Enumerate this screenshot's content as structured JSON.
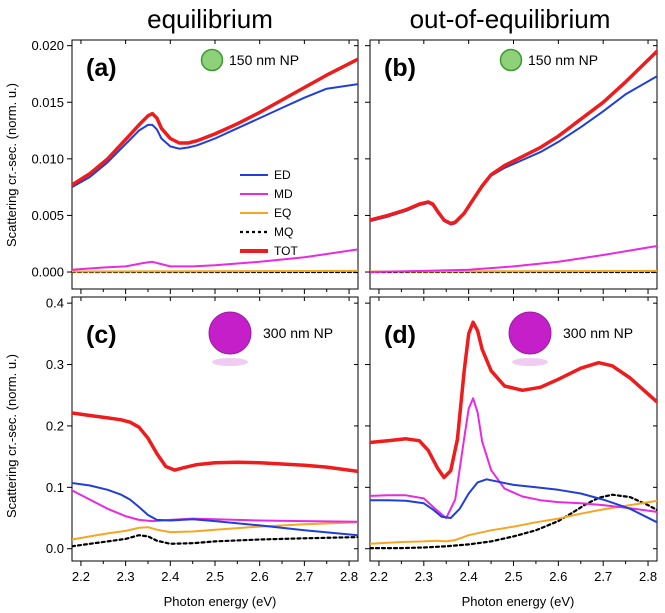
{
  "column_titles": [
    "equilibrium",
    "out-of-equilibrium"
  ],
  "colors": {
    "ED": "#1f3fd8",
    "MD": "#e72be0",
    "EQ": "#f5a623",
    "MQ": "#000000",
    "TOT": "#ee1c1c",
    "np_small": "#8fd17a",
    "np_large": "#c51fc9"
  },
  "legend": [
    "ED",
    "MD",
    "EQ",
    "MQ",
    "TOT"
  ],
  "chart_data": [
    {
      "type": "line",
      "panel": "(a)",
      "np_label": "150 nm NP",
      "title": "equilibrium",
      "xlabel": "",
      "ylabel": "Scattering cr.-sec. (norm. u.)",
      "xlim": [
        2.18,
        2.82
      ],
      "ylim": [
        -0.0015,
        0.0205
      ],
      "yticks": [
        "0.000",
        "0.005",
        "0.010",
        "0.015",
        "0.020"
      ],
      "ytick_values": [
        0,
        0.005,
        0.01,
        0.015,
        0.02
      ],
      "series": [
        {
          "name": "TOT",
          "x": [
            2.18,
            2.22,
            2.26,
            2.3,
            2.33,
            2.35,
            2.36,
            2.37,
            2.38,
            2.4,
            2.42,
            2.44,
            2.46,
            2.5,
            2.55,
            2.6,
            2.65,
            2.7,
            2.75,
            2.82
          ],
          "y": [
            0.0077,
            0.0087,
            0.01,
            0.0117,
            0.013,
            0.0138,
            0.014,
            0.0136,
            0.0127,
            0.0118,
            0.0114,
            0.0114,
            0.0116,
            0.0122,
            0.0131,
            0.0141,
            0.0152,
            0.0163,
            0.0174,
            0.0188
          ]
        },
        {
          "name": "ED",
          "x": [
            2.18,
            2.22,
            2.26,
            2.3,
            2.33,
            2.35,
            2.36,
            2.37,
            2.38,
            2.4,
            2.42,
            2.44,
            2.46,
            2.5,
            2.55,
            2.6,
            2.65,
            2.7,
            2.75,
            2.82
          ],
          "y": [
            0.0075,
            0.0084,
            0.0097,
            0.0113,
            0.0125,
            0.013,
            0.013,
            0.0126,
            0.0118,
            0.0111,
            0.0109,
            0.011,
            0.0112,
            0.0118,
            0.0127,
            0.0136,
            0.0145,
            0.0154,
            0.0162,
            0.0166
          ]
        },
        {
          "name": "MD",
          "x": [
            2.18,
            2.25,
            2.3,
            2.34,
            2.36,
            2.38,
            2.4,
            2.45,
            2.5,
            2.6,
            2.7,
            2.82
          ],
          "y": [
            0.0002,
            0.0004,
            0.0005,
            0.0008,
            0.0009,
            0.0007,
            0.0005,
            0.0005,
            0.0006,
            0.0009,
            0.0013,
            0.002
          ]
        },
        {
          "name": "EQ",
          "x": [
            2.18,
            2.82
          ],
          "y": [
            5e-05,
            0.0001
          ]
        },
        {
          "name": "MQ",
          "x": [
            2.18,
            2.82
          ],
          "y": [
            0.0,
            0.0
          ]
        }
      ]
    },
    {
      "type": "line",
      "panel": "(b)",
      "np_label": "150 nm NP",
      "title": "out-of-equilibrium",
      "xlabel": "",
      "ylabel": "",
      "xlim": [
        2.18,
        2.82
      ],
      "ylim": [
        -0.0015,
        0.0205
      ],
      "yticks": [],
      "ytick_values": [
        0,
        0.005,
        0.01,
        0.015,
        0.02
      ],
      "series": [
        {
          "name": "TOT",
          "x": [
            2.18,
            2.22,
            2.26,
            2.29,
            2.31,
            2.32,
            2.33,
            2.345,
            2.36,
            2.37,
            2.39,
            2.41,
            2.43,
            2.45,
            2.48,
            2.52,
            2.56,
            2.6,
            2.65,
            2.7,
            2.75,
            2.82
          ],
          "y": [
            0.0046,
            0.005,
            0.0055,
            0.006,
            0.0062,
            0.006,
            0.0054,
            0.0046,
            0.0043,
            0.0044,
            0.0052,
            0.0064,
            0.0076,
            0.0086,
            0.0094,
            0.0102,
            0.011,
            0.012,
            0.0135,
            0.015,
            0.0168,
            0.0195
          ]
        },
        {
          "name": "ED",
          "x": [
            2.18,
            2.22,
            2.26,
            2.29,
            2.31,
            2.32,
            2.33,
            2.345,
            2.36,
            2.37,
            2.39,
            2.41,
            2.43,
            2.45,
            2.48,
            2.52,
            2.56,
            2.6,
            2.65,
            2.7,
            2.75,
            2.82
          ],
          "y": [
            0.0045,
            0.0049,
            0.0054,
            0.0059,
            0.0061,
            0.0059,
            0.0053,
            0.0045,
            0.0042,
            0.0043,
            0.0051,
            0.0063,
            0.0075,
            0.0085,
            0.0092,
            0.0099,
            0.0106,
            0.0115,
            0.0128,
            0.0142,
            0.0157,
            0.0173
          ]
        },
        {
          "name": "MD",
          "x": [
            2.18,
            2.3,
            2.4,
            2.5,
            2.6,
            2.7,
            2.82
          ],
          "y": [
            0.0,
            0.0001,
            0.0002,
            0.0005,
            0.0009,
            0.0015,
            0.0023
          ]
        },
        {
          "name": "EQ",
          "x": [
            2.18,
            2.82
          ],
          "y": [
            5e-05,
            0.0001
          ]
        },
        {
          "name": "MQ",
          "x": [
            2.18,
            2.82
          ],
          "y": [
            0.0,
            0.0
          ]
        }
      ]
    },
    {
      "type": "line",
      "panel": "(c)",
      "np_label": "300 nm NP",
      "title": "",
      "xlabel": "Photon energy (eV)",
      "ylabel": "Scattering cr.-sec. (norm. u.)",
      "xlim": [
        2.18,
        2.82
      ],
      "ylim": [
        -0.02,
        0.41
      ],
      "yticks": [
        "0.0",
        "0.1",
        "0.2",
        "0.3",
        "0.4"
      ],
      "ytick_values": [
        0,
        0.1,
        0.2,
        0.3,
        0.4
      ],
      "series": [
        {
          "name": "TOT",
          "x": [
            2.18,
            2.22,
            2.26,
            2.29,
            2.31,
            2.33,
            2.35,
            2.37,
            2.39,
            2.41,
            2.43,
            2.46,
            2.5,
            2.55,
            2.6,
            2.65,
            2.7,
            2.75,
            2.82
          ],
          "y": [
            0.221,
            0.217,
            0.213,
            0.21,
            0.206,
            0.198,
            0.18,
            0.155,
            0.134,
            0.128,
            0.132,
            0.137,
            0.14,
            0.141,
            0.14,
            0.138,
            0.136,
            0.133,
            0.126
          ]
        },
        {
          "name": "ED",
          "x": [
            2.18,
            2.22,
            2.26,
            2.29,
            2.31,
            2.33,
            2.35,
            2.37,
            2.4,
            2.45,
            2.5,
            2.6,
            2.7,
            2.82
          ],
          "y": [
            0.107,
            0.103,
            0.096,
            0.088,
            0.08,
            0.068,
            0.055,
            0.047,
            0.046,
            0.048,
            0.045,
            0.038,
            0.03,
            0.022
          ]
        },
        {
          "name": "MD",
          "x": [
            2.18,
            2.22,
            2.26,
            2.3,
            2.33,
            2.36,
            2.4,
            2.45,
            2.5,
            2.6,
            2.7,
            2.82
          ],
          "y": [
            0.095,
            0.08,
            0.065,
            0.053,
            0.047,
            0.045,
            0.047,
            0.049,
            0.048,
            0.046,
            0.045,
            0.044
          ]
        },
        {
          "name": "EQ",
          "x": [
            2.18,
            2.22,
            2.26,
            2.3,
            2.33,
            2.35,
            2.37,
            2.4,
            2.45,
            2.5,
            2.6,
            2.7,
            2.82
          ],
          "y": [
            0.015,
            0.02,
            0.025,
            0.029,
            0.034,
            0.035,
            0.031,
            0.027,
            0.028,
            0.031,
            0.036,
            0.04,
            0.043
          ]
        },
        {
          "name": "MQ",
          "x": [
            2.18,
            2.22,
            2.26,
            2.3,
            2.33,
            2.35,
            2.37,
            2.4,
            2.45,
            2.5,
            2.6,
            2.7,
            2.82
          ],
          "y": [
            0.004,
            0.008,
            0.012,
            0.016,
            0.022,
            0.02,
            0.013,
            0.008,
            0.009,
            0.012,
            0.015,
            0.017,
            0.019
          ]
        }
      ]
    },
    {
      "type": "line",
      "panel": "(d)",
      "np_label": "300 nm NP",
      "title": "",
      "xlabel": "Photon energy (eV)",
      "ylabel": "",
      "xlim": [
        2.18,
        2.82
      ],
      "ylim": [
        -0.02,
        0.41
      ],
      "yticks": [],
      "ytick_values": [
        0,
        0.1,
        0.2,
        0.3,
        0.4
      ],
      "series": [
        {
          "name": "TOT",
          "x": [
            2.18,
            2.22,
            2.26,
            2.29,
            2.31,
            2.33,
            2.345,
            2.36,
            2.375,
            2.39,
            2.4,
            2.41,
            2.42,
            2.43,
            2.45,
            2.48,
            2.52,
            2.56,
            2.6,
            2.65,
            2.69,
            2.72,
            2.76,
            2.82
          ],
          "y": [
            0.173,
            0.176,
            0.179,
            0.176,
            0.16,
            0.132,
            0.116,
            0.127,
            0.178,
            0.29,
            0.35,
            0.369,
            0.355,
            0.325,
            0.29,
            0.265,
            0.258,
            0.263,
            0.276,
            0.294,
            0.303,
            0.298,
            0.278,
            0.239
          ]
        },
        {
          "name": "ED",
          "x": [
            2.18,
            2.22,
            2.26,
            2.3,
            2.32,
            2.34,
            2.36,
            2.38,
            2.4,
            2.42,
            2.44,
            2.46,
            2.5,
            2.55,
            2.6,
            2.65,
            2.7,
            2.76,
            2.82
          ],
          "y": [
            0.079,
            0.079,
            0.078,
            0.074,
            0.064,
            0.052,
            0.05,
            0.065,
            0.09,
            0.108,
            0.113,
            0.11,
            0.104,
            0.1,
            0.096,
            0.09,
            0.08,
            0.065,
            0.043
          ]
        },
        {
          "name": "MD",
          "x": [
            2.18,
            2.22,
            2.26,
            2.3,
            2.33,
            2.35,
            2.37,
            2.39,
            2.4,
            2.41,
            2.42,
            2.43,
            2.45,
            2.48,
            2.52,
            2.56,
            2.6,
            2.65,
            2.7,
            2.76,
            2.82
          ],
          "y": [
            0.086,
            0.087,
            0.087,
            0.082,
            0.062,
            0.05,
            0.08,
            0.18,
            0.228,
            0.245,
            0.222,
            0.175,
            0.128,
            0.098,
            0.085,
            0.079,
            0.076,
            0.074,
            0.071,
            0.066,
            0.06
          ]
        },
        {
          "name": "EQ",
          "x": [
            2.18,
            2.25,
            2.3,
            2.33,
            2.35,
            2.37,
            2.4,
            2.45,
            2.5,
            2.55,
            2.6,
            2.65,
            2.7,
            2.76,
            2.82
          ],
          "y": [
            0.008,
            0.011,
            0.012,
            0.013,
            0.012,
            0.014,
            0.022,
            0.03,
            0.036,
            0.043,
            0.049,
            0.057,
            0.064,
            0.071,
            0.078
          ]
        },
        {
          "name": "MQ",
          "x": [
            2.18,
            2.25,
            2.3,
            2.35,
            2.4,
            2.45,
            2.5,
            2.55,
            2.6,
            2.63,
            2.66,
            2.69,
            2.72,
            2.76,
            2.8,
            2.82
          ],
          "y": [
            0.001,
            0.001,
            0.002,
            0.004,
            0.007,
            0.012,
            0.02,
            0.03,
            0.045,
            0.058,
            0.072,
            0.083,
            0.088,
            0.084,
            0.071,
            0.063
          ]
        }
      ]
    }
  ],
  "xticks": [
    "2.2",
    "2.3",
    "2.4",
    "2.5",
    "2.6",
    "2.7",
    "2.8"
  ],
  "xtick_values": [
    2.2,
    2.3,
    2.4,
    2.5,
    2.6,
    2.7,
    2.8
  ]
}
